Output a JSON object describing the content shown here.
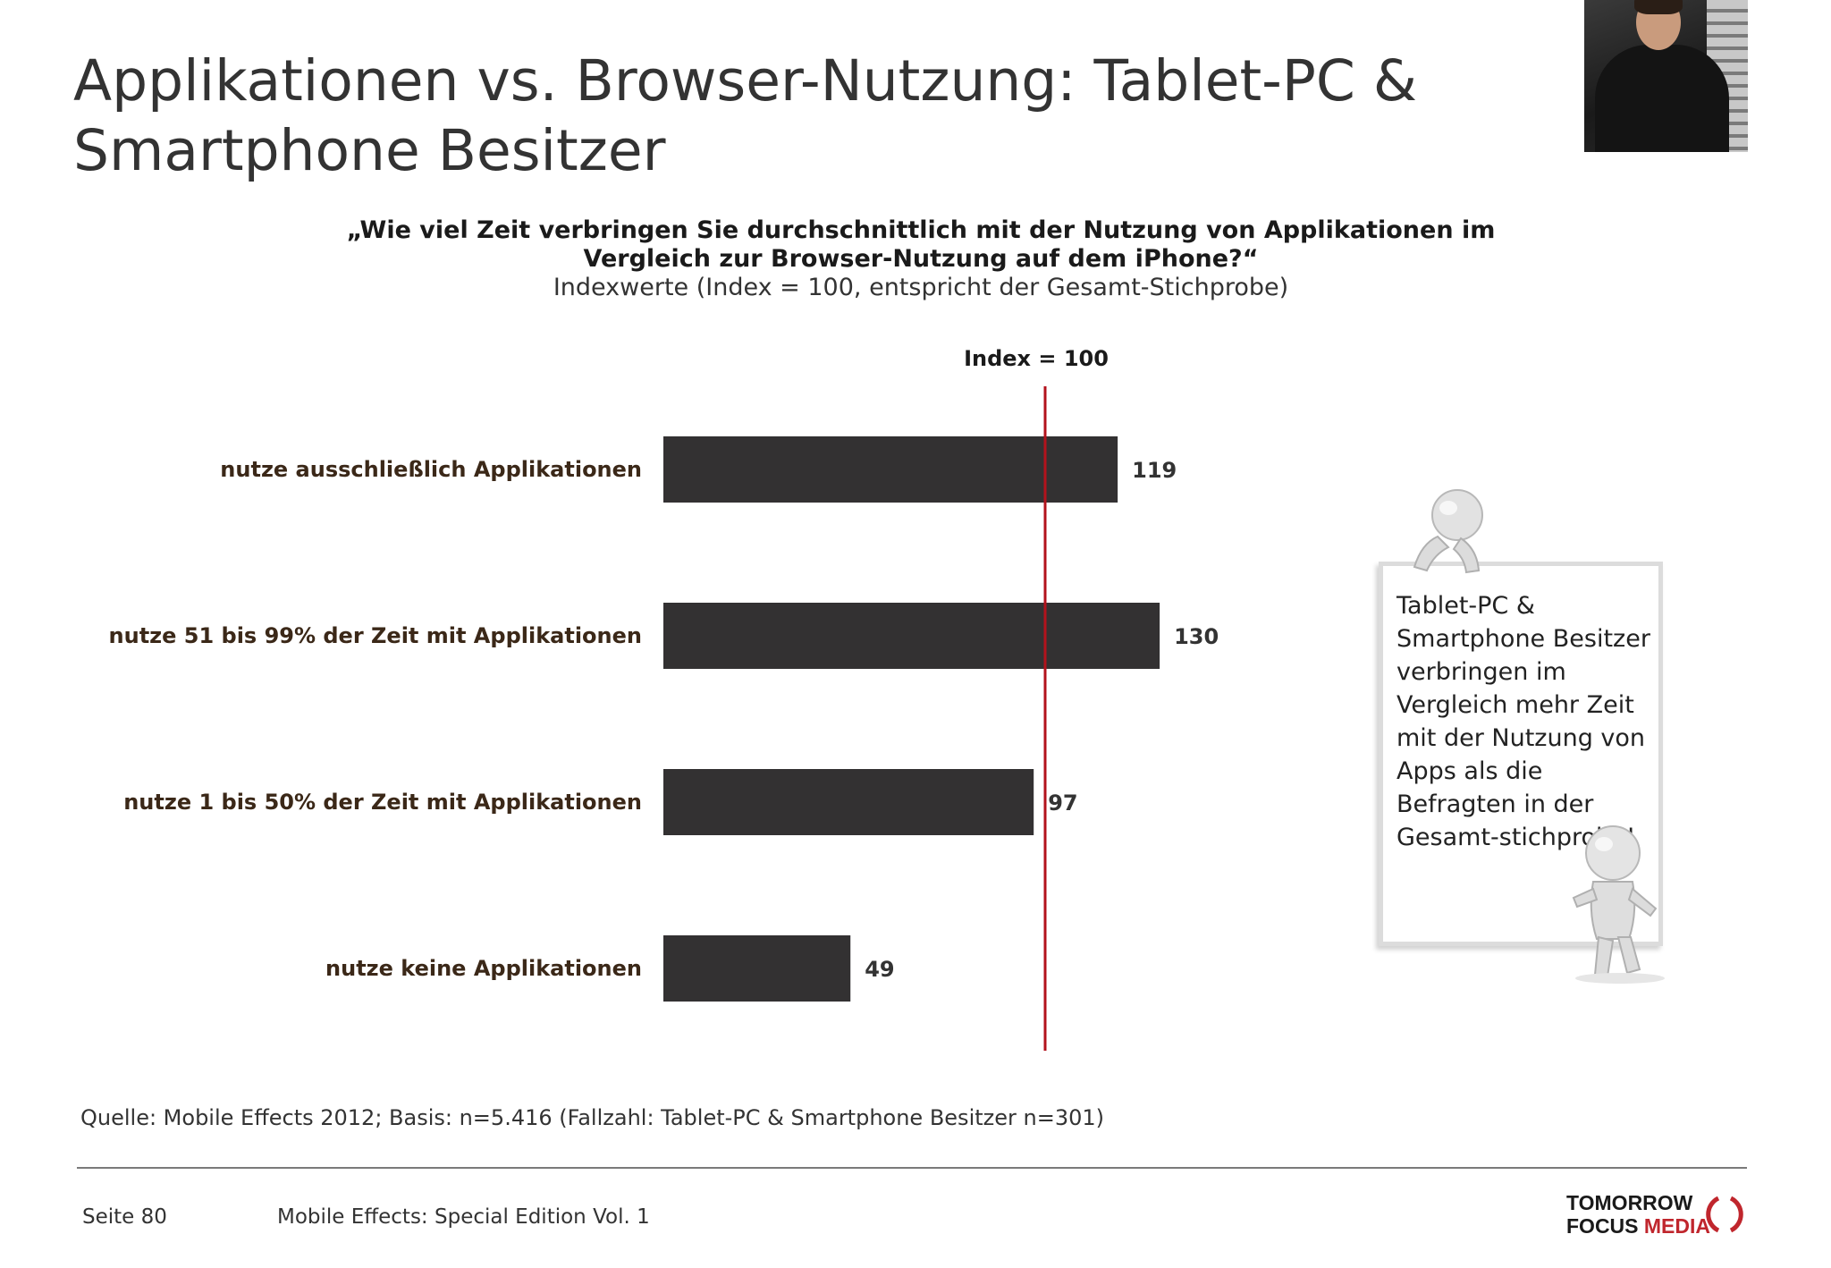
{
  "header": {
    "title": "Applikationen vs. Browser-Nutzung: Tablet-PC & Smartphone Besitzer"
  },
  "chart_data": {
    "type": "bar",
    "orientation": "horizontal",
    "title": "„Wie viel Zeit verbringen Sie durchschnittlich mit der Nutzung von Applikationen im Vergleich zur Browser-Nutzung auf dem iPhone?“",
    "subtitle": "Indexwerte (Index = 100, entspricht der Gesamt-Stichprobe)",
    "categories": [
      "nutze ausschließlich Applikationen",
      "nutze 51 bis 99% der Zeit mit Applikationen",
      "nutze 1 bis 50% der Zeit mit Applikationen",
      "nutze keine Applikationen"
    ],
    "values": [
      119,
      130,
      97,
      49
    ],
    "value_labels": [
      "119",
      "130",
      "97",
      "49"
    ],
    "reference_line": {
      "value": 100,
      "label": "Index = 100",
      "color": "#b3121c"
    },
    "bar_color": "#333132",
    "xlim": [
      0,
      135
    ],
    "grid": false,
    "legend": "none"
  },
  "callout": {
    "text": "Tablet-PC & Smartphone Besitzer verbringen im Vergleich mehr Zeit mit der Nutzung von Apps als die Befragten in der Gesamt-stichprobe!"
  },
  "footer": {
    "source": "Quelle: Mobile Effects 2012; Basis: n=5.416 (Fallzahl: Tablet-PC & Smartphone Besitzer n=301)",
    "page": "Seite 80",
    "publication": "Mobile Effects: Special Edition Vol. 1",
    "logo_line1": "TOMORROW",
    "logo_line2a": "FOCUS",
    "logo_line2b": "MEDIA"
  },
  "colors": {
    "accent": "#c0262d",
    "text": "#333333"
  }
}
